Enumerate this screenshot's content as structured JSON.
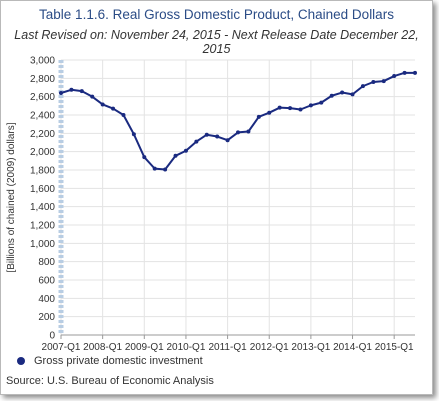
{
  "chart_data": {
    "type": "line",
    "title": "Table 1.1.6. Real Gross Domestic Product, Chained Dollars",
    "subtitle": "Last Revised on: November 24, 2015 - Next Release Date December 22, 2015",
    "ylabel": "[Billions of chained (2009) dollars]",
    "xlabel": "",
    "ylim": [
      0,
      3000
    ],
    "yticks": [
      0,
      200,
      400,
      600,
      800,
      1000,
      1200,
      1400,
      1600,
      1800,
      2000,
      2200,
      2400,
      2600,
      2800,
      3000
    ],
    "ytick_labels": [
      "0",
      "200",
      "400",
      "600",
      "800",
      "1,000",
      "1,200",
      "1,400",
      "1,600",
      "1,800",
      "2,000",
      "2,200",
      "2,400",
      "2,600",
      "2,800",
      "3,000"
    ],
    "x_tick_labels": [
      "2007-Q1",
      "2008-Q1",
      "2009-Q1",
      "2010-Q1",
      "2011-Q1",
      "2012-Q1",
      "2013-Q1",
      "2014-Q1",
      "2015-Q1"
    ],
    "x": [
      "2007-Q1",
      "2007-Q2",
      "2007-Q3",
      "2007-Q4",
      "2008-Q1",
      "2008-Q2",
      "2008-Q3",
      "2008-Q4",
      "2009-Q1",
      "2009-Q2",
      "2009-Q3",
      "2009-Q4",
      "2010-Q1",
      "2010-Q2",
      "2010-Q3",
      "2010-Q4",
      "2011-Q1",
      "2011-Q2",
      "2011-Q3",
      "2011-Q4",
      "2012-Q1",
      "2012-Q2",
      "2012-Q3",
      "2012-Q4",
      "2013-Q1",
      "2013-Q2",
      "2013-Q3",
      "2013-Q4",
      "2014-Q1",
      "2014-Q2",
      "2014-Q3",
      "2014-Q4",
      "2015-Q1",
      "2015-Q2",
      "2015-Q3"
    ],
    "series": [
      {
        "name": "Gross private domestic investment",
        "color": "#1a2a80",
        "values": [
          2640,
          2675,
          2660,
          2600,
          2515,
          2470,
          2400,
          2190,
          1940,
          1815,
          1805,
          1955,
          2010,
          2110,
          2185,
          2165,
          2125,
          2210,
          2220,
          2380,
          2425,
          2480,
          2475,
          2460,
          2505,
          2535,
          2610,
          2645,
          2625,
          2715,
          2760,
          2770,
          2825,
          2860,
          2860
        ]
      }
    ],
    "grid": true,
    "legend_position": "bottom-left"
  },
  "source": "Source: U.S. Bureau of Economic  Analysis"
}
